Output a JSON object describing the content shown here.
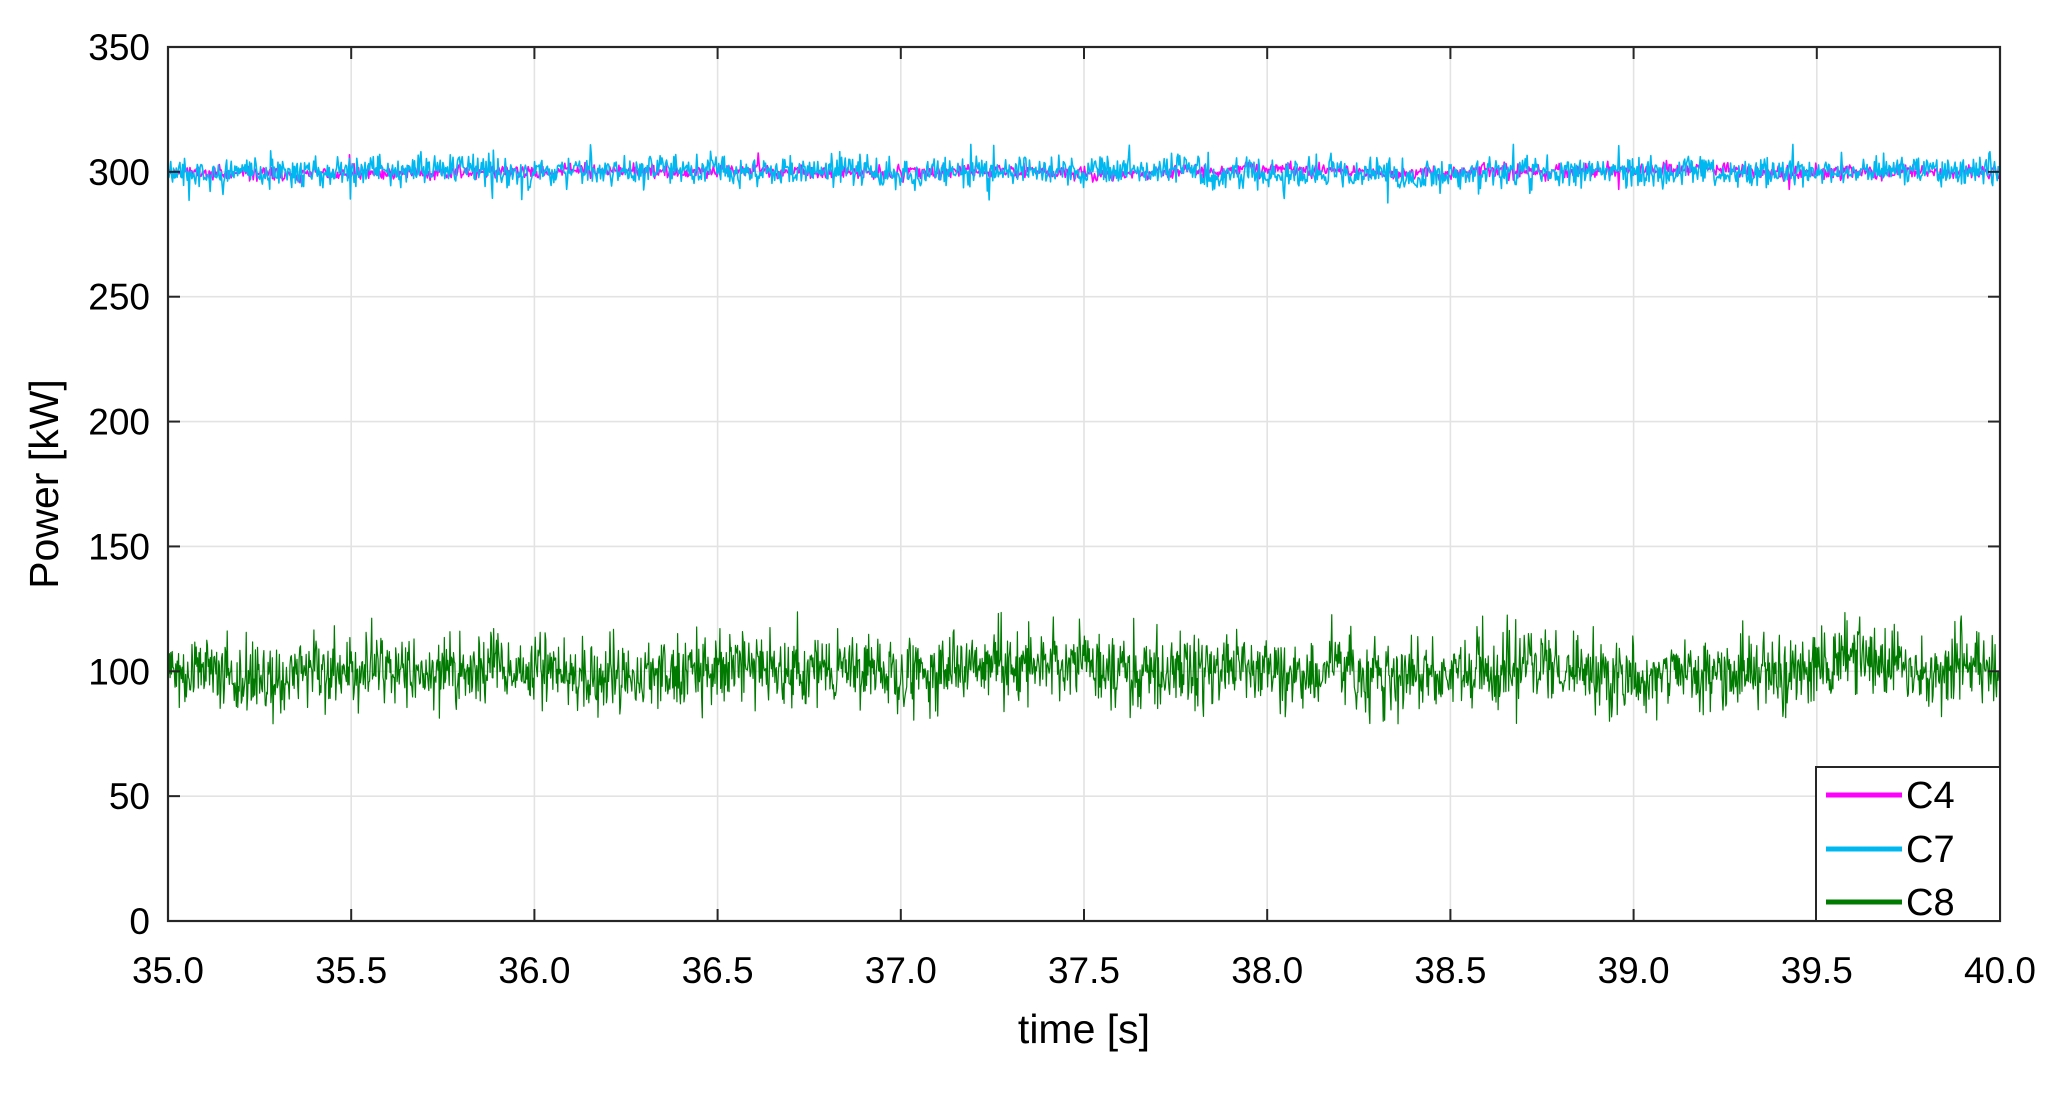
{
  "chart_data": {
    "type": "line",
    "title": "",
    "xlabel": "time [s]",
    "ylabel": "Power [kW]",
    "xlim": [
      35.0,
      40.0
    ],
    "ylim": [
      0,
      350
    ],
    "xticks": [
      "35.0",
      "35.5",
      "36.0",
      "36.5",
      "37.0",
      "37.5",
      "38.0",
      "38.5",
      "39.0",
      "39.5",
      "40.0"
    ],
    "yticks": [
      "0",
      "50",
      "100",
      "150",
      "200",
      "250",
      "300",
      "350"
    ],
    "grid": true,
    "legend_position": "bottom-right",
    "series": [
      {
        "name": "C4",
        "color": "#ff00ff",
        "mean": 300,
        "typical_range": [
          296,
          305
        ],
        "extremes": [
          293,
          308
        ]
      },
      {
        "name": "C7",
        "color": "#00b8f0",
        "mean": 300,
        "typical_range": [
          293,
          307
        ],
        "extremes": [
          287,
          311
        ]
      },
      {
        "name": "C8",
        "color": "#007a00",
        "mean": 101,
        "typical_range": [
          88,
          114
        ],
        "extremes": [
          79,
          125
        ]
      }
    ]
  }
}
